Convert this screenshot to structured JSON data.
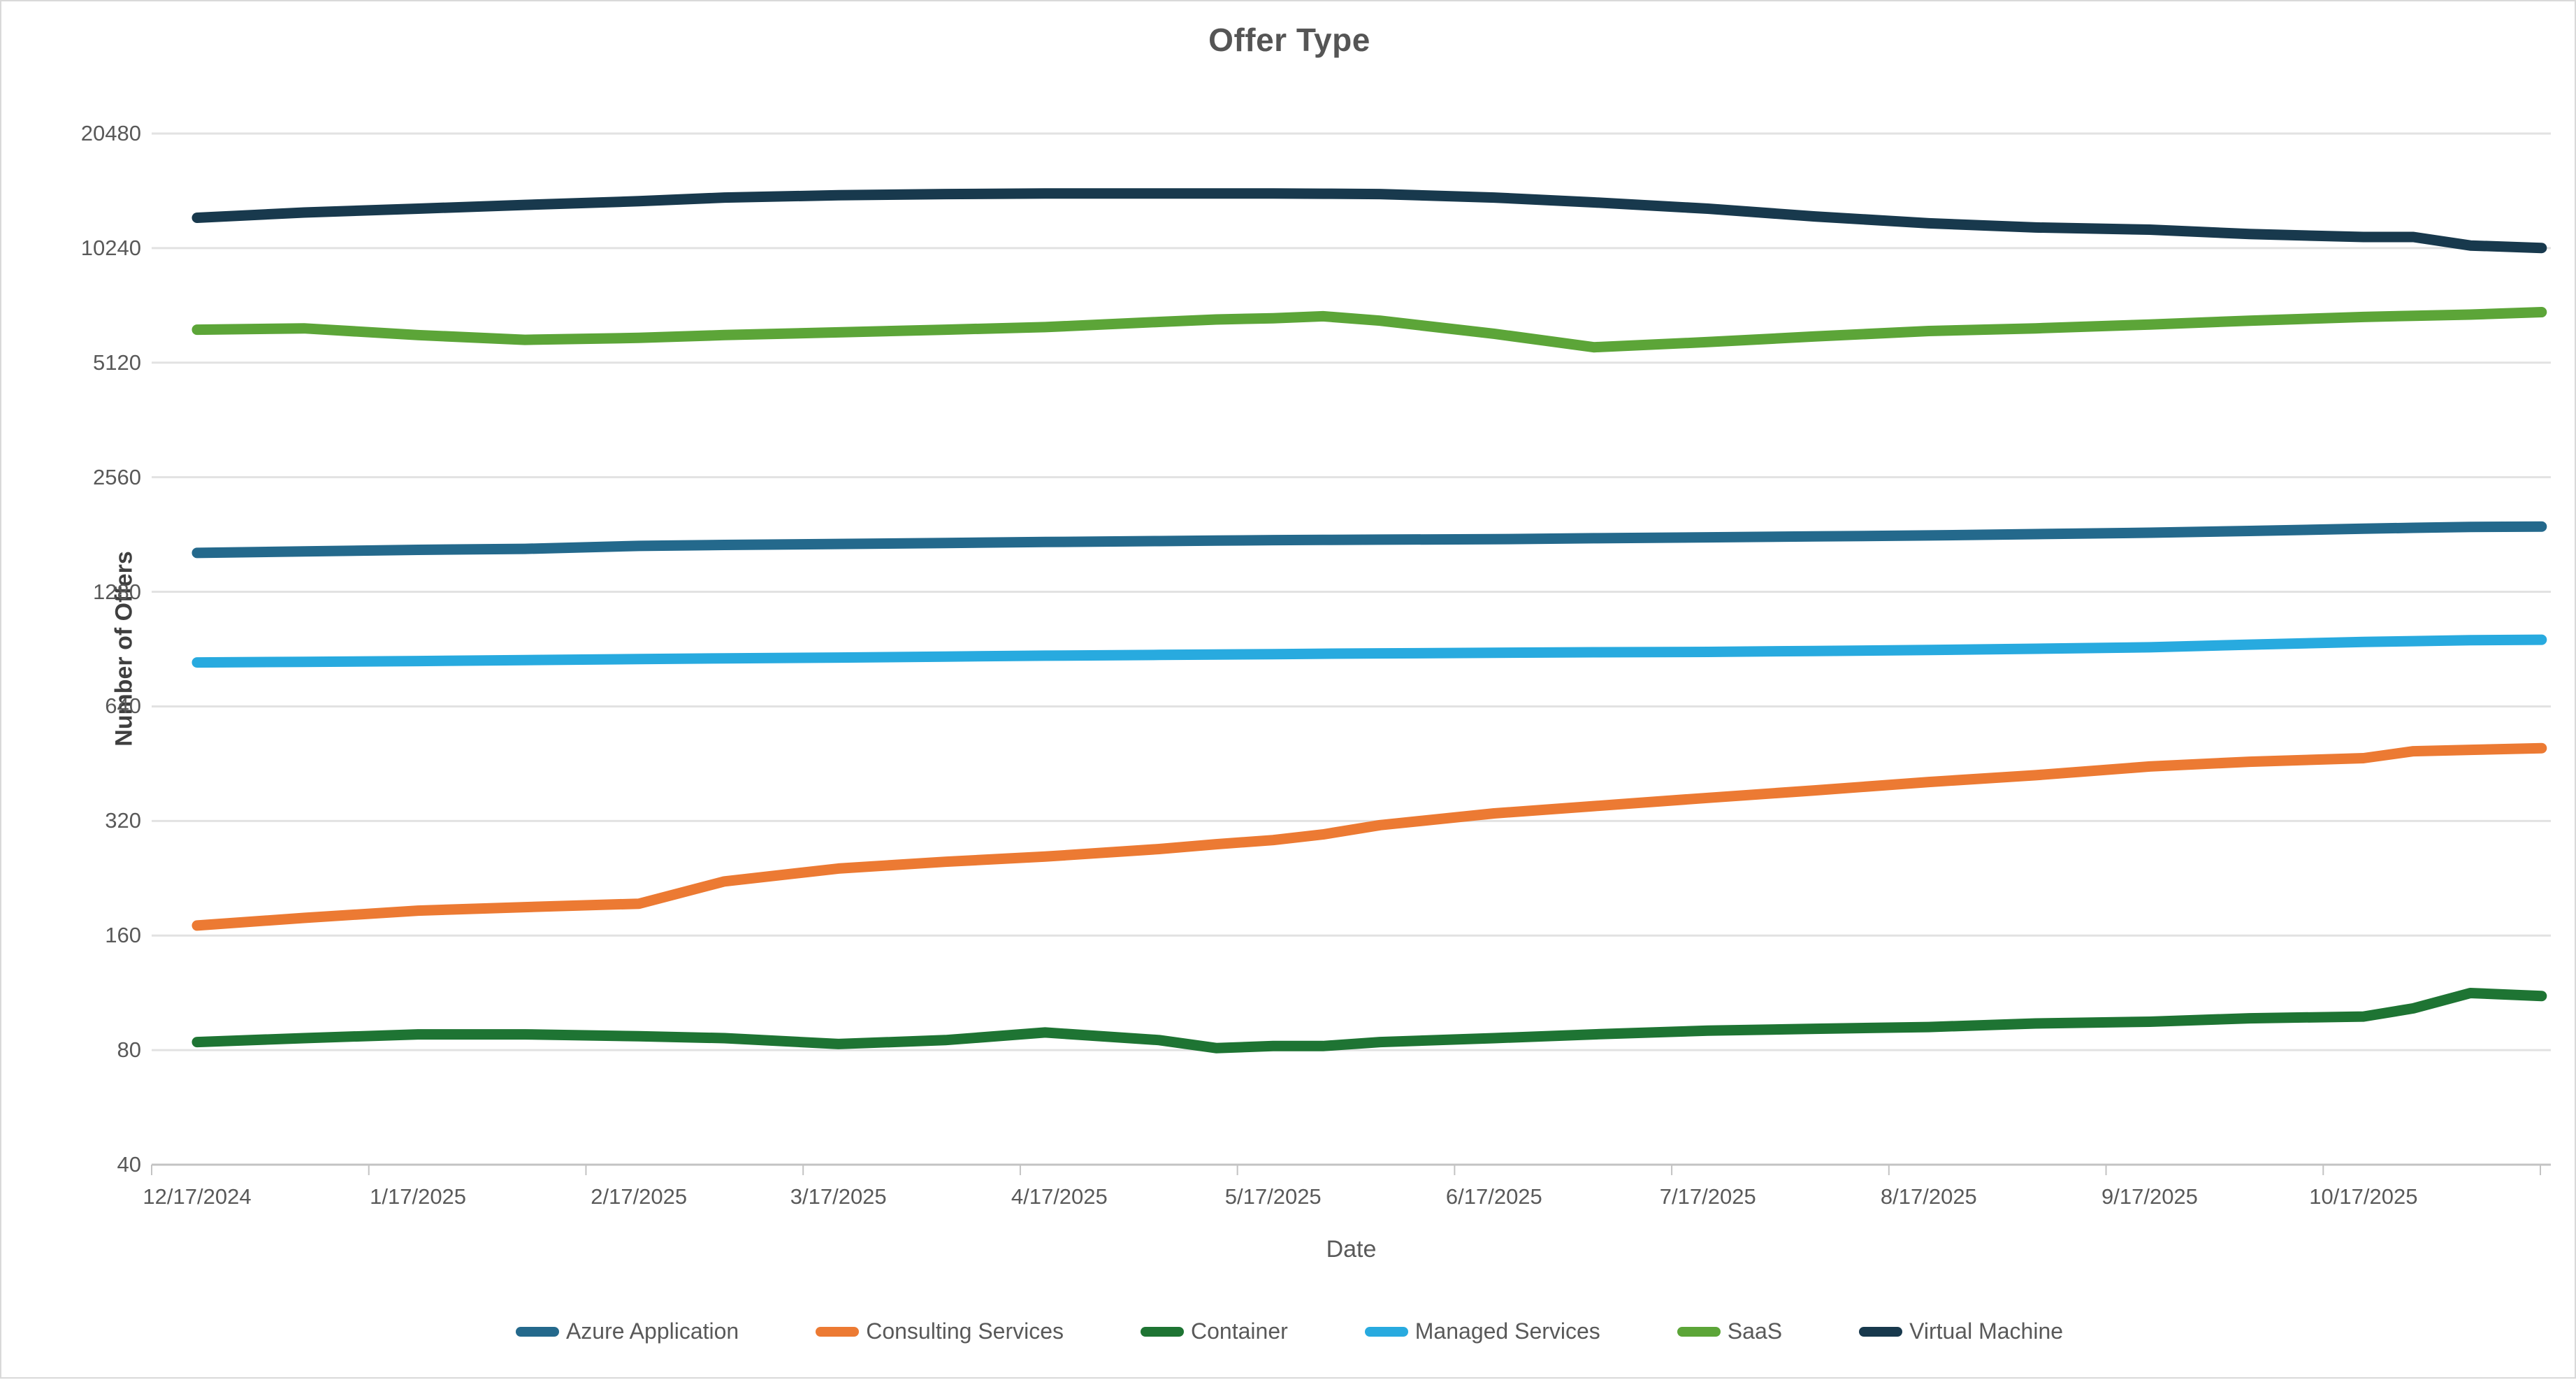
{
  "title": "Offer Type",
  "axis": {
    "x_title": "Date",
    "y_title": "Number of Offers"
  },
  "legend": [
    "Azure Application",
    "Consulting Services",
    "Container",
    "Managed Services",
    "SaaS",
    "Virtual Machine"
  ],
  "colors": {
    "azure_application": "#24698C",
    "consulting_services": "#EC7A33",
    "container": "#1E7433",
    "managed_services": "#28AADF",
    "saas": "#5CA538",
    "virtual_machine": "#18394D",
    "gridline": "#e2e2e2",
    "axis_line": "#c3c3c3",
    "tick_text": "#595959",
    "title_text": "#555555"
  },
  "chart_data": {
    "type": "line",
    "title": "Offer Type",
    "xlabel": "Date",
    "ylabel": "Number of Offers",
    "y_scale": "log2",
    "ylim": [
      40,
      20480
    ],
    "y_ticks": [
      40,
      80,
      160,
      320,
      640,
      1280,
      2560,
      5120,
      10240,
      20480
    ],
    "x_tick_labels": [
      "12/17/2024",
      "1/17/2025",
      "2/17/2025",
      "3/17/2025",
      "4/17/2025",
      "5/17/2025",
      "6/17/2025",
      "7/17/2025",
      "8/17/2025",
      "9/17/2025",
      "10/17/2025"
    ],
    "grid": true,
    "legend_position": "bottom",
    "x": [
      "12/17/2024",
      "1/1/2025",
      "1/17/2025",
      "2/1/2025",
      "2/17/2025",
      "3/1/2025",
      "3/17/2025",
      "4/1/2025",
      "4/15/2025",
      "5/1/2025",
      "5/9/2025",
      "5/17/2025",
      "5/24/2025",
      "6/1/2025",
      "6/17/2025",
      "7/1/2025",
      "7/17/2025",
      "8/1/2025",
      "8/17/2025",
      "9/1/2025",
      "9/17/2025",
      "10/1/2025",
      "10/17/2025",
      "10/24/2025",
      "11/1/2025",
      "11/11/2025"
    ],
    "series": [
      {
        "name": "Azure Application",
        "color": "#24698C",
        "values": [
          1620,
          1635,
          1650,
          1660,
          1690,
          1700,
          1710,
          1720,
          1730,
          1740,
          1745,
          1750,
          1752,
          1755,
          1760,
          1770,
          1780,
          1790,
          1800,
          1815,
          1830,
          1850,
          1875,
          1885,
          1895,
          1900
        ]
      },
      {
        "name": "Consulting Services",
        "color": "#EC7A33",
        "values": [
          170,
          178,
          186,
          190,
          194,
          222,
          240,
          250,
          258,
          270,
          278,
          285,
          295,
          312,
          335,
          350,
          368,
          385,
          405,
          422,
          445,
          458,
          468,
          488,
          492,
          497
        ]
      },
      {
        "name": "Container",
        "color": "#1E7433",
        "values": [
          84,
          86,
          88,
          88,
          87,
          86,
          83,
          85,
          89,
          85,
          81,
          82,
          82,
          84,
          86,
          88,
          90,
          91,
          92,
          94,
          95,
          97,
          98,
          103,
          113,
          111
        ]
      },
      {
        "name": "Managed Services",
        "color": "#28AADF",
        "values": [
          835,
          838,
          842,
          847,
          852,
          856,
          860,
          865,
          870,
          874,
          876,
          878,
          880,
          882,
          885,
          888,
          890,
          895,
          900,
          907,
          915,
          930,
          945,
          950,
          955,
          958
        ]
      },
      {
        "name": "SaaS",
        "color": "#5CA538",
        "values": [
          6250,
          6300,
          6050,
          5880,
          5950,
          6050,
          6150,
          6250,
          6350,
          6550,
          6650,
          6700,
          6780,
          6600,
          6100,
          5620,
          5800,
          6000,
          6200,
          6300,
          6450,
          6600,
          6750,
          6800,
          6850,
          6950
        ]
      },
      {
        "name": "Virtual Machine",
        "color": "#18394D",
        "values": [
          12300,
          12700,
          13000,
          13300,
          13600,
          13900,
          14100,
          14200,
          14250,
          14250,
          14250,
          14250,
          14230,
          14200,
          13900,
          13500,
          13000,
          12400,
          11900,
          11600,
          11450,
          11150,
          10950,
          10950,
          10400,
          10250
        ]
      }
    ]
  }
}
